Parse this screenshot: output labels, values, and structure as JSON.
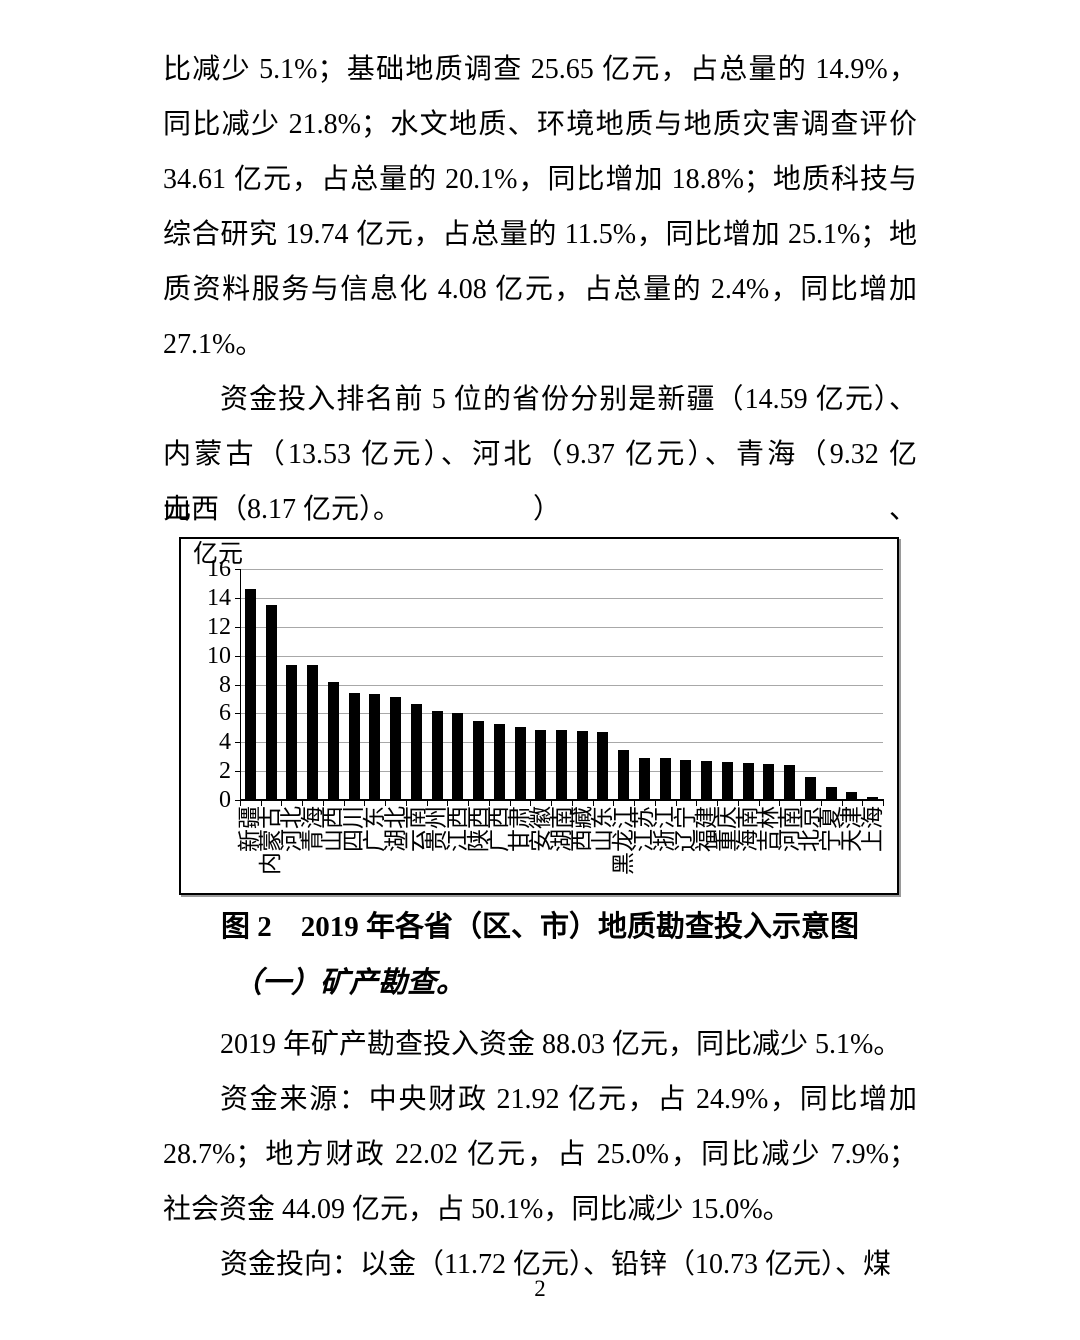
{
  "document": {
    "para1_lines": [
      "比减少 5.1%；基础地质调查 25.65 亿元，占总量的 14.9%，",
      "同比减少 21.8%；水文地质、环境地质与地质灾害调查评价",
      "34.61 亿元，占总量的 20.1%，同比增加 18.8%；地质科技与",
      "综合研究 19.74 亿元，占总量的 11.5%，同比增加 25.1%；地",
      "质资料服务与信息化 4.08 亿元，占总量的 2.4%，同比增加",
      "27.1%。"
    ],
    "para2_lines": [
      "资金投入排名前 5 位的省份分别是新疆（14.59 亿元）、",
      "内蒙古（13.53 亿元）、河北（9.37 亿元）、青海（9.32 亿元）、",
      "山西（8.17 亿元）。"
    ],
    "figure_caption": "图 2　2019 年各省（区、市）地质勘查投入示意图",
    "section_heading": "（一）矿产勘查。",
    "para3_lines": [
      "2019 年矿产勘查投入资金 88.03 亿元，同比减少 5.1%。"
    ],
    "para4_lines": [
      "资金来源：中央财政 21.92 亿元，占 24.9%，同比增加",
      "28.7%；地方财政 22.02 亿元，占 25.0%，同比减少 7.9%；",
      "社会资金 44.09 亿元，占 50.1%，同比减少 15.0%。"
    ],
    "para5_lines": [
      "资金投向：以金（11.72 亿元）、铅锌（10.73 亿元）、煤"
    ],
    "page_number": "2"
  },
  "chart_data": {
    "type": "bar",
    "title": "",
    "ylabel": "亿元",
    "xlabel": "",
    "categories": [
      "新疆",
      "内蒙古",
      "河北",
      "青海",
      "山西",
      "四川",
      "广东",
      "湖北",
      "云南",
      "贵州",
      "江西",
      "陕西",
      "广西",
      "甘肃",
      "安徽",
      "湖南",
      "西藏",
      "山东",
      "黑龙江",
      "江苏",
      "浙江",
      "辽宁",
      "福建",
      "重庆",
      "海南",
      "吉林",
      "河南",
      "北京",
      "宁夏",
      "天津",
      "上海"
    ],
    "values": [
      14.59,
      13.53,
      9.37,
      9.32,
      8.17,
      7.41,
      7.37,
      7.13,
      6.63,
      6.14,
      6.02,
      5.45,
      5.24,
      5.03,
      4.83,
      4.83,
      4.78,
      4.71,
      3.44,
      2.9,
      2.9,
      2.78,
      2.68,
      2.63,
      2.58,
      2.48,
      2.44,
      1.6,
      0.92,
      0.53,
      0.22
    ],
    "ylim": [
      0,
      16
    ],
    "ytick_step": 2,
    "grid": true,
    "legend": "none",
    "bar_color": "#000000",
    "gridline_color": "#a8a8a8"
  }
}
